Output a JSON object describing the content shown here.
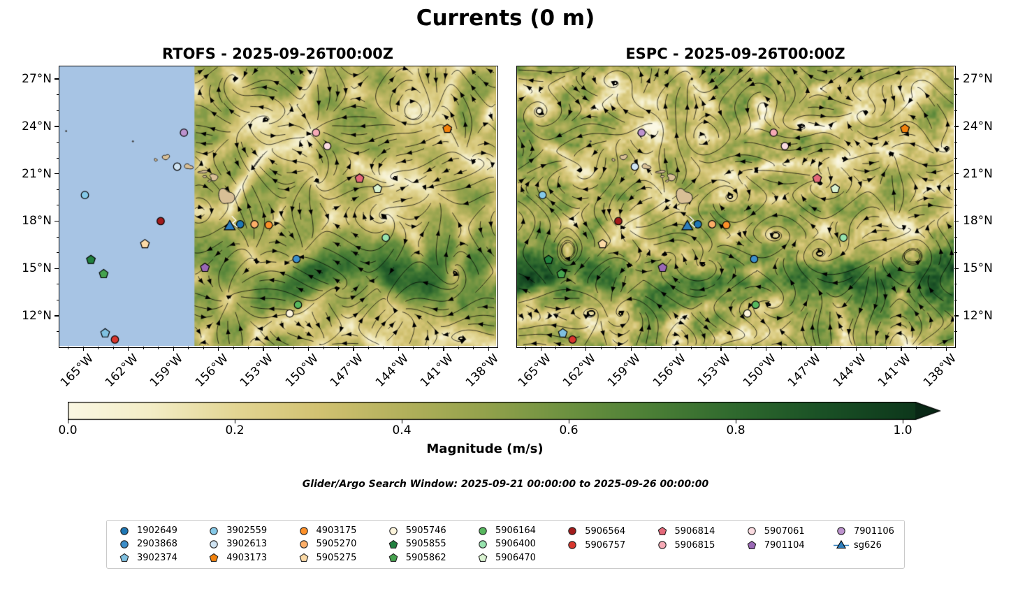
{
  "chart_data": {
    "type": "heatmap",
    "subtype": "ocean_current_speed_maps_with_streamlines_and_float_markers",
    "figure_title": "Currents (0 m)",
    "search_window": "Glider/Argo Search Window: 2025-09-21 00:00:00 to 2025-09-26 00:00:00",
    "panels": [
      {
        "model": "RTOFS",
        "title": "RTOFS - 2025-09-26T00:00Z",
        "valid_time": "2025-09-26T00:00Z",
        "nodata_region": {
          "present": true,
          "lon_max": -157.6,
          "color": "#a7c4e4"
        },
        "render": {
          "seed": 11,
          "grain": 1.0,
          "band": 0.36,
          "modes": 7
        }
      },
      {
        "model": "ESPC",
        "title": "ESPC - 2025-09-26T00:00Z",
        "valid_time": "2025-09-26T00:00Z",
        "nodata_region": {
          "present": false,
          "lon_max": null,
          "color": null
        },
        "render": {
          "seed": 83,
          "grain": 1.55,
          "band": 0.44,
          "modes": 8
        }
      }
    ],
    "axis": {
      "lon_min": -166.6,
      "lon_max": -137.5,
      "lat_min": 10.1,
      "lat_max": 27.8,
      "x_ticks": [
        {
          "lon": -165,
          "label": "165°W"
        },
        {
          "lon": -162,
          "label": "162°W"
        },
        {
          "lon": -159,
          "label": "159°W"
        },
        {
          "lon": -156,
          "label": "156°W"
        },
        {
          "lon": -153,
          "label": "153°W"
        },
        {
          "lon": -150,
          "label": "150°W"
        },
        {
          "lon": -147,
          "label": "147°W"
        },
        {
          "lon": -144,
          "label": "144°W"
        },
        {
          "lon": -141,
          "label": "141°W"
        },
        {
          "lon": -138,
          "label": "138°W"
        }
      ],
      "y_ticks": [
        {
          "lat": 27,
          "label": "27°N"
        },
        {
          "lat": 24,
          "label": "24°N"
        },
        {
          "lat": 21,
          "label": "21°N"
        },
        {
          "lat": 18,
          "label": "18°N"
        },
        {
          "lat": 15,
          "label": "15°N"
        },
        {
          "lat": 12,
          "label": "12°N"
        }
      ],
      "minor_tick_step_deg": 1
    },
    "colorbar": {
      "label": "Magnitude (m/s)",
      "vmin": 0.0,
      "vmax": 1.0,
      "extend": "max",
      "ticks": [
        {
          "value": 0.0,
          "label": "0.0"
        },
        {
          "value": 0.2,
          "label": "0.2"
        },
        {
          "value": 0.4,
          "label": "0.4"
        },
        {
          "value": 0.6,
          "label": "0.6"
        },
        {
          "value": 0.8,
          "label": "0.8"
        },
        {
          "value": 1.0,
          "label": "1.0"
        }
      ],
      "colormap_stops": [
        [
          0.0,
          "#fbf8e4"
        ],
        [
          0.1,
          "#f3edc6"
        ],
        [
          0.2,
          "#e3d694"
        ],
        [
          0.3,
          "#d2c272"
        ],
        [
          0.4,
          "#b3b15c"
        ],
        [
          0.5,
          "#93a24c"
        ],
        [
          0.6,
          "#6c9140"
        ],
        [
          0.7,
          "#4b7f36"
        ],
        [
          0.8,
          "#2f692e"
        ],
        [
          0.9,
          "#1b5226"
        ],
        [
          1.0,
          "#0f3b1d"
        ],
        [
          1.1,
          "#082313"
        ]
      ]
    },
    "land_color": "#d8bf96",
    "islands": [
      {
        "name": "Niihau",
        "lon": -160.18,
        "lat": 21.88,
        "rx": 0.08,
        "ry": 0.1,
        "ph": 1.0
      },
      {
        "name": "Kauai",
        "lon": -159.5,
        "lat": 22.05,
        "rx": 0.2,
        "ry": 0.18,
        "ph": 2.1
      },
      {
        "name": "Oahu",
        "lon": -158.0,
        "lat": 21.45,
        "rx": 0.26,
        "ry": 0.16,
        "ph": 0.4
      },
      {
        "name": "Molokai",
        "lon": -157.02,
        "lat": 21.12,
        "rx": 0.3,
        "ry": 0.08,
        "ph": 3.0
      },
      {
        "name": "Lanai",
        "lon": -156.92,
        "lat": 20.82,
        "rx": 0.1,
        "ry": 0.08,
        "ph": 1.8
      },
      {
        "name": "Kahoolawe",
        "lon": -156.6,
        "lat": 20.54,
        "rx": 0.09,
        "ry": 0.07,
        "ph": 2.5
      },
      {
        "name": "Maui",
        "lon": -156.3,
        "lat": 20.78,
        "rx": 0.3,
        "ry": 0.18,
        "ph": 5.1
      },
      {
        "name": "Hawaii",
        "lon": -155.5,
        "lat": 19.55,
        "rx": 0.45,
        "ry": 0.52,
        "ph": 0.9
      },
      {
        "name": "Nihoa",
        "lon": -161.7,
        "lat": 23.05,
        "dot": true
      },
      {
        "name": "Necker",
        "lon": -166.15,
        "lat": 23.7,
        "dot": true
      }
    ],
    "floats": [
      {
        "id": "1902649",
        "shape": "circle",
        "color": "#1f77b4",
        "lon": -154.55,
        "lat": 17.8
      },
      {
        "id": "2903868",
        "shape": "circle",
        "color": "#3d8ec9",
        "lon": -150.8,
        "lat": 15.6
      },
      {
        "id": "3902374",
        "shape": "pentagon",
        "color": "#7fc0e0",
        "lon": -163.55,
        "lat": 10.9
      },
      {
        "id": "3902559",
        "shape": "circle",
        "color": "#85c9e8",
        "lon": -164.9,
        "lat": 19.65
      },
      {
        "id": "3902613",
        "shape": "circle",
        "color": "#cfe3f2",
        "lon": -158.75,
        "lat": 21.45
      },
      {
        "id": "4903173",
        "shape": "pentagon",
        "color": "#f2820d",
        "lon": -140.75,
        "lat": 23.85
      },
      {
        "id": "4903175",
        "shape": "circle",
        "color": "#fd9029",
        "lon": -152.65,
        "lat": 17.75
      },
      {
        "id": "5905270",
        "shape": "circle",
        "color": "#fcae68",
        "lon": -153.6,
        "lat": 17.8
      },
      {
        "id": "5905275",
        "shape": "pentagon",
        "color": "#fbd9a5",
        "lon": -160.9,
        "lat": 16.55
      },
      {
        "id": "5905746",
        "shape": "circle",
        "color": "#fdf5dc",
        "lon": -151.25,
        "lat": 12.15
      },
      {
        "id": "5905855",
        "shape": "pentagon",
        "color": "#21803f",
        "lon": -164.5,
        "lat": 15.55
      },
      {
        "id": "5905862",
        "shape": "pentagon",
        "color": "#46a24e",
        "lon": -163.65,
        "lat": 14.65
      },
      {
        "id": "5906164",
        "shape": "circle",
        "color": "#57b75e",
        "lon": -150.7,
        "lat": 12.7
      },
      {
        "id": "5906400",
        "shape": "circle",
        "color": "#97e3ae",
        "lon": -144.85,
        "lat": 16.95
      },
      {
        "id": "5906470",
        "shape": "pentagon",
        "color": "#daf3d1",
        "lon": -145.4,
        "lat": 20.05
      },
      {
        "id": "5906564",
        "shape": "circle",
        "color": "#a21c1c",
        "lon": -159.85,
        "lat": 18.0
      },
      {
        "id": "5906757",
        "shape": "circle",
        "color": "#d8372e",
        "lon": -162.9,
        "lat": 10.5
      },
      {
        "id": "5906814",
        "shape": "pentagon",
        "color": "#e4697a",
        "lon": -146.6,
        "lat": 20.7
      },
      {
        "id": "5906815",
        "shape": "circle",
        "color": "#f6aab6",
        "lon": -149.5,
        "lat": 23.6
      },
      {
        "id": "5907061",
        "shape": "circle",
        "color": "#fadbe0",
        "lon": -148.75,
        "lat": 22.75
      },
      {
        "id": "7901104",
        "shape": "pentagon",
        "color": "#9a68b5",
        "lon": -156.9,
        "lat": 15.05
      },
      {
        "id": "7901106",
        "shape": "circle",
        "color": "#bd93ce",
        "lon": -158.3,
        "lat": 23.6
      },
      {
        "id": "sg626",
        "shape": "triangle",
        "color": "#2e7ebc",
        "lon": -155.25,
        "lat": 17.65
      }
    ],
    "legend_columns": [
      [
        "1902649",
        "2903868",
        "3902374"
      ],
      [
        "3902559",
        "3902613",
        "4903173"
      ],
      [
        "4903175",
        "5905270",
        "5905275"
      ],
      [
        "5905746",
        "5905855",
        "5905862"
      ],
      [
        "5906164",
        "5906400",
        "5906470"
      ],
      [
        "5906564",
        "5906757"
      ],
      [
        "5906814",
        "5906815"
      ],
      [
        "5907061",
        "7901104"
      ],
      [
        "7901106",
        "sg626"
      ]
    ]
  }
}
